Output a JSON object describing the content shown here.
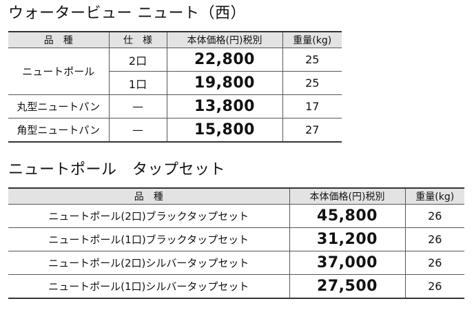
{
  "section1": {
    "title": "ウォータービュー ニュート（西）",
    "headers": {
      "item": "品　種",
      "spec": "仕　様",
      "price": "本体価格(円)税別",
      "weight": "重量(kg)"
    },
    "rows": [
      {
        "item": "ニュートポール",
        "spec": "2口",
        "price": "22,800",
        "weight": "25"
      },
      {
        "item": "ニュートポール",
        "spec": "1口",
        "price": "19,800",
        "weight": "25"
      },
      {
        "item": "丸型ニュートパン",
        "spec": "—",
        "price": "13,800",
        "weight": "17"
      },
      {
        "item": "角型ニュートパン",
        "spec": "—",
        "price": "15,800",
        "weight": "27"
      }
    ]
  },
  "section2": {
    "title": "ニュートポール　タップセット",
    "headers": {
      "item": "品　種",
      "price": "本体価格(円)税別",
      "weight": "重量(kg)"
    },
    "rows": [
      {
        "item": "ニュートポール(2口)ブラックタップセット",
        "price": "45,800",
        "weight": "26"
      },
      {
        "item": "ニュートポール(1口)ブラックタップセット",
        "price": "31,200",
        "weight": "26"
      },
      {
        "item": "ニュートポール(2口)シルバータップセット",
        "price": "37,000",
        "weight": "26"
      },
      {
        "item": "ニュートポール(1口)シルバータップセット",
        "price": "27,500",
        "weight": "26"
      }
    ]
  }
}
